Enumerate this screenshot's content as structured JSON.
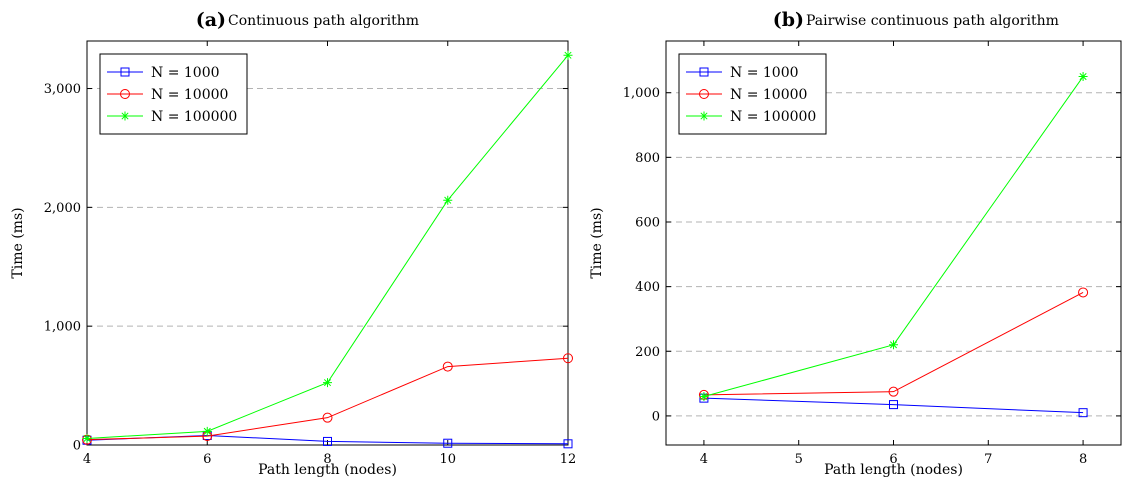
{
  "chart_data": [
    {
      "type": "line",
      "panel_letter": "(a)",
      "title": "Continuous path algorithm",
      "xlabel": "Path length (nodes)",
      "ylabel": "Time (ms)",
      "x": [
        4,
        6,
        8,
        10,
        12
      ],
      "xlim": [
        4,
        12
      ],
      "ylim": [
        0,
        3400
      ],
      "xticks": [
        "4",
        "6",
        "8",
        "10",
        "12"
      ],
      "yticks": [
        "0",
        "1,000",
        "2,000",
        "3,000"
      ],
      "ytick_values": [
        0,
        1000,
        2000,
        3000
      ],
      "grid": "horizontal dashed",
      "legend_position": "top-left",
      "series": [
        {
          "name": "N = 1000",
          "color": "#0000ff",
          "marker": "square",
          "values": [
            40,
            80,
            30,
            15,
            10
          ]
        },
        {
          "name": "N = 10000",
          "color": "#ff0000",
          "marker": "circle",
          "values": [
            45,
            75,
            230,
            660,
            730
          ]
        },
        {
          "name": "N = 100000",
          "color": "#00ff00",
          "marker": "asterisk",
          "values": [
            55,
            115,
            525,
            2060,
            3280
          ]
        }
      ]
    },
    {
      "type": "line",
      "panel_letter": "(b)",
      "title": "Pairwise continuous path algorithm",
      "xlabel": "Path length (nodes)",
      "ylabel": "Time (ms)",
      "x": [
        4,
        6,
        8
      ],
      "xlim": [
        3.6,
        8.4
      ],
      "ylim": [
        -90,
        1160
      ],
      "xticks": [
        "4",
        "5",
        "6",
        "7",
        "8"
      ],
      "xtick_values": [
        4,
        5,
        6,
        7,
        8
      ],
      "yticks": [
        "0",
        "200",
        "400",
        "600",
        "800",
        "1,000"
      ],
      "ytick_values": [
        0,
        200,
        400,
        600,
        800,
        1000
      ],
      "grid": "horizontal dashed",
      "legend_position": "top-left",
      "series": [
        {
          "name": "N = 1000",
          "color": "#0000ff",
          "marker": "square",
          "values": [
            55,
            35,
            10
          ]
        },
        {
          "name": "N = 10000",
          "color": "#ff0000",
          "marker": "circle",
          "values": [
            65,
            75,
            382
          ]
        },
        {
          "name": "N = 100000",
          "color": "#00ff00",
          "marker": "asterisk",
          "values": [
            60,
            220,
            1050
          ]
        }
      ]
    }
  ]
}
